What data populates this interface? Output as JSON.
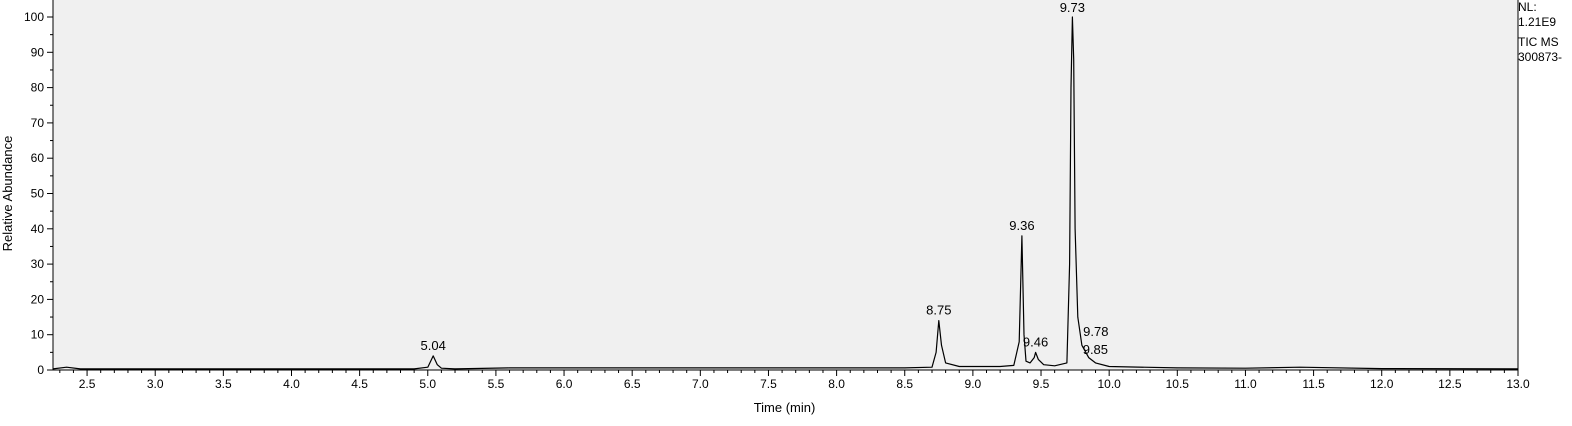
{
  "chart_data": {
    "type": "line",
    "xlabel": "Time (min)",
    "ylabel": "Relative Abundance",
    "xlim": [
      2.25,
      13.0
    ],
    "ylim": [
      0,
      100
    ],
    "x_ticks": [
      "2.5",
      "3.0",
      "3.5",
      "4.0",
      "4.5",
      "5.0",
      "5.5",
      "6.0",
      "6.5",
      "7.0",
      "7.5",
      "8.0",
      "8.5",
      "9.0",
      "9.5",
      "10.0",
      "10.5",
      "11.0",
      "11.5",
      "12.0",
      "12.5",
      "13.0"
    ],
    "y_ticks": [
      "0",
      "10",
      "20",
      "30",
      "40",
      "50",
      "60",
      "70",
      "80",
      "90",
      "100"
    ],
    "grid": false,
    "line_color": "#000000",
    "plot_background": "#f0f0f0",
    "peak_labels": [
      {
        "label": "5.04",
        "x": 5.04,
        "y": 4
      },
      {
        "label": "8.75",
        "x": 8.75,
        "y": 14
      },
      {
        "label": "9.36",
        "x": 9.36,
        "y": 38
      },
      {
        "label": "9.46",
        "x": 9.46,
        "y": 5
      },
      {
        "label": "9.73",
        "x": 9.73,
        "y": 100
      },
      {
        "label": "9.78",
        "x": 9.78,
        "y": 9
      },
      {
        "label": "9.85",
        "x": 9.85,
        "y": 4
      }
    ],
    "series": [
      {
        "x": [
          2.25,
          2.35,
          2.45,
          4.9,
          5.0,
          5.04,
          5.07,
          5.1,
          5.2,
          5.6,
          6.6,
          6.95,
          7.9,
          8.5,
          8.7,
          8.73,
          8.75,
          8.77,
          8.8,
          8.9,
          9.0,
          9.2,
          9.3,
          9.34,
          9.36,
          9.375,
          9.39,
          9.42,
          9.45,
          9.46,
          9.48,
          9.52,
          9.6,
          9.69,
          9.71,
          9.72,
          9.73,
          9.74,
          9.75,
          9.77,
          9.8,
          9.85,
          9.9,
          10.0,
          10.5,
          11.0,
          11.4,
          12.0,
          13.0
        ],
        "y": [
          0.3,
          0.8,
          0.3,
          0.3,
          0.8,
          4.0,
          1.5,
          0.5,
          0.3,
          0.6,
          0.6,
          0.6,
          0.6,
          0.6,
          0.8,
          5.0,
          14.0,
          7.0,
          2.0,
          1.0,
          1.0,
          1.0,
          1.3,
          8.0,
          38.0,
          10.0,
          2.5,
          2.0,
          3.5,
          5.0,
          3.0,
          1.5,
          1.2,
          2.0,
          30.0,
          80.0,
          100.0,
          88.0,
          40.0,
          15.0,
          7.0,
          3.5,
          2.0,
          1.0,
          0.6,
          0.5,
          0.8,
          0.4,
          0.3
        ]
      }
    ]
  },
  "info": {
    "nl_label": "NL:",
    "nl_value": "1.21E9",
    "scan": "TIC  MS",
    "file": "300873-"
  }
}
